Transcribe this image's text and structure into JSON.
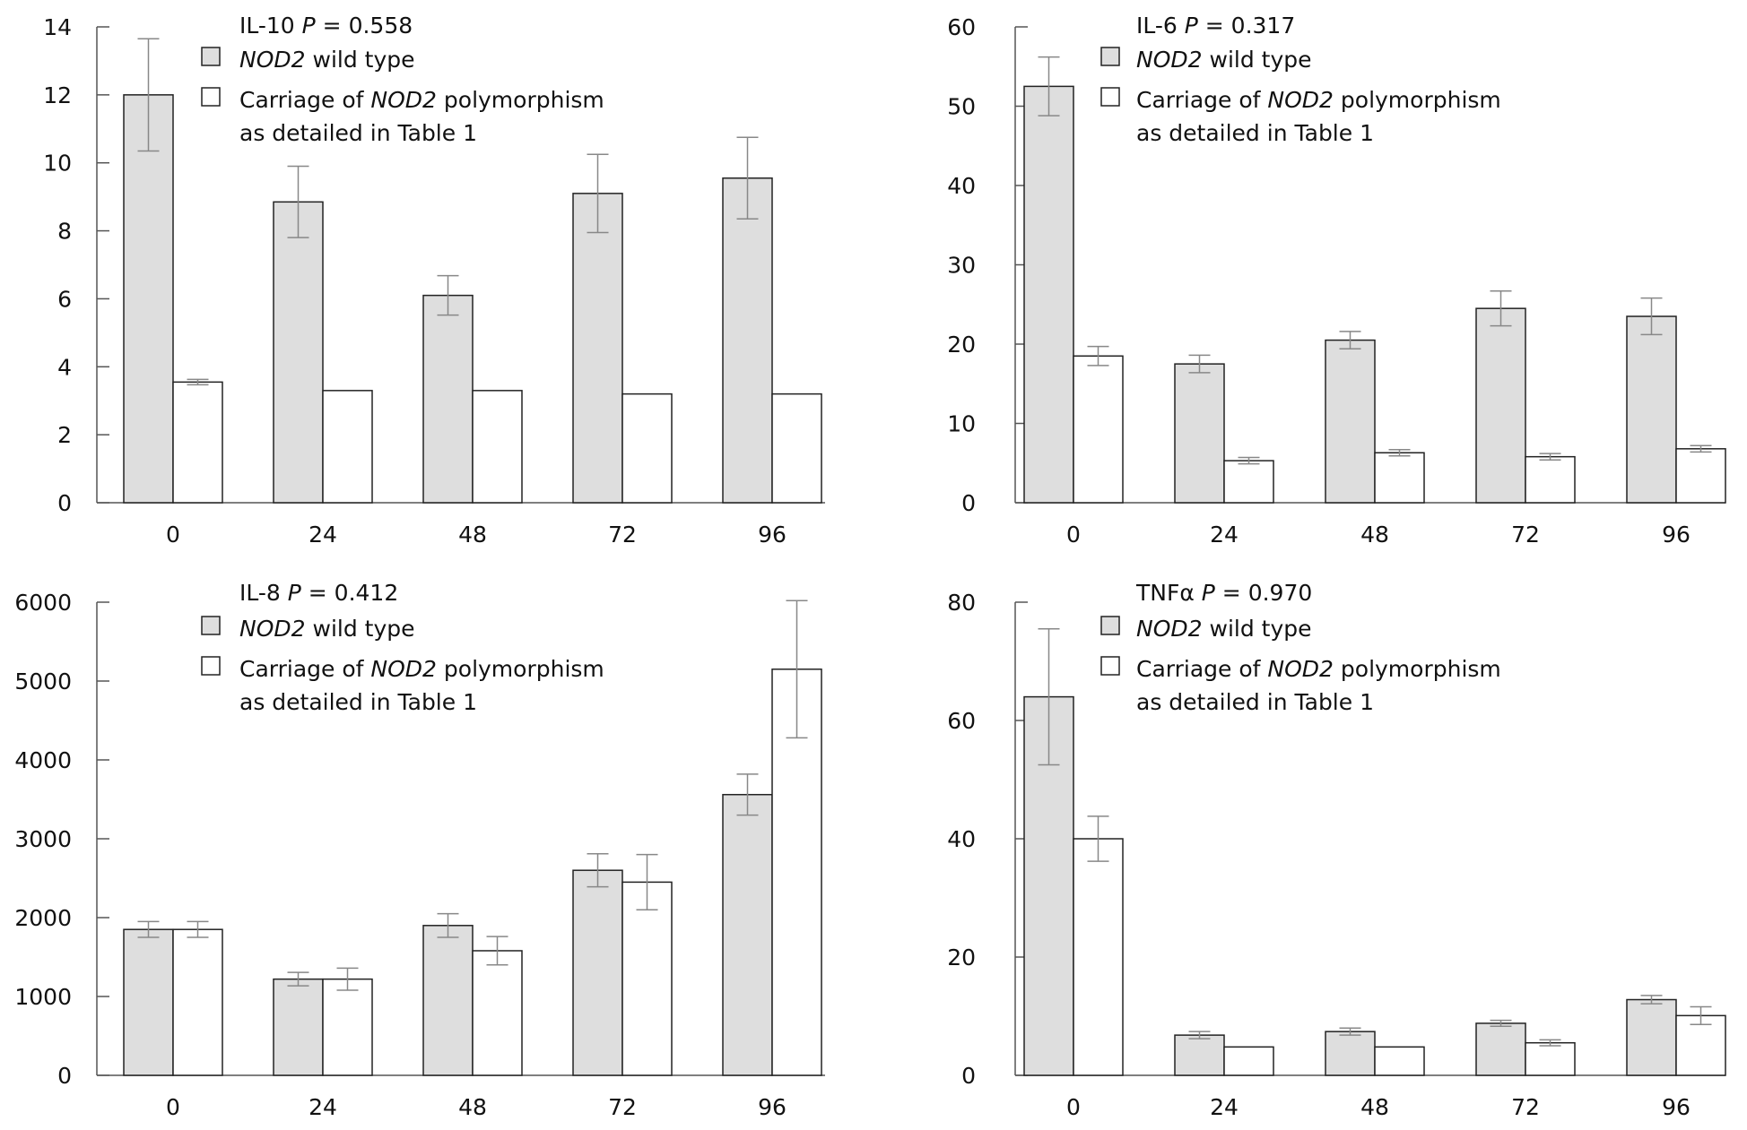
{
  "chart_data": [
    {
      "type": "bar",
      "title_prefix": "IL-10",
      "title_p": "P",
      "title_value": " = 0.558",
      "categories": [
        "0",
        "24",
        "48",
        "72",
        "96"
      ],
      "series": [
        {
          "name": "NOD2 wild type",
          "name_italic": "NOD2",
          "name_rest": " wild type",
          "color": "#dedede",
          "values": [
            12.0,
            8.85,
            6.1,
            9.1,
            9.55
          ],
          "errors": [
            1.65,
            1.05,
            0.58,
            1.15,
            1.2
          ]
        },
        {
          "name": "Carriage of NOD2 polymorphism as detailed in Table 1",
          "name_pre": "Carriage of ",
          "name_italic": "NOD2",
          "name_rest": " polymorphism",
          "name_line2": "as detailed in Table 1",
          "color": "#ffffff",
          "values": [
            3.55,
            3.3,
            3.3,
            3.2,
            3.2
          ],
          "errors": [
            0.08,
            0,
            0,
            0,
            0
          ]
        }
      ],
      "yticks": [
        0,
        2,
        4,
        6,
        8,
        10,
        12,
        14
      ],
      "ylim": [
        0,
        14
      ],
      "legend": "top"
    },
    {
      "type": "bar",
      "title_prefix": "IL-6",
      "title_p": "P",
      "title_value": " = 0.317",
      "categories": [
        "0",
        "24",
        "48",
        "72",
        "96"
      ],
      "series": [
        {
          "name": "NOD2 wild type",
          "name_italic": "NOD2",
          "name_rest": " wild type",
          "color": "#dedede",
          "values": [
            52.5,
            17.5,
            20.5,
            24.5,
            23.5
          ],
          "errors": [
            3.7,
            1.1,
            1.1,
            2.2,
            2.3
          ]
        },
        {
          "name": "Carriage of NOD2 polymorphism as detailed in Table 1",
          "name_pre": "Carriage of ",
          "name_italic": "NOD2",
          "name_rest": " polymorphism",
          "name_line2": "as detailed in Table 1",
          "color": "#ffffff",
          "values": [
            18.5,
            5.3,
            6.3,
            5.8,
            6.8
          ],
          "errors": [
            1.2,
            0.4,
            0.4,
            0.4,
            0.4
          ]
        }
      ],
      "yticks": [
        0,
        10,
        20,
        30,
        40,
        50,
        60
      ],
      "ylim": [
        0,
        60
      ],
      "legend": "top"
    },
    {
      "type": "bar",
      "title_prefix": "IL-8",
      "title_p": "P",
      "title_value": " = 0.412",
      "categories": [
        "0",
        "24",
        "48",
        "72",
        "96"
      ],
      "series": [
        {
          "name": "NOD2 wild type",
          "name_italic": "NOD2",
          "name_rest": " wild type",
          "color": "#dedede",
          "values": [
            1850,
            1220,
            1900,
            2600,
            3560
          ],
          "errors": [
            100,
            85,
            150,
            210,
            260
          ]
        },
        {
          "name": "Carriage of NOD2 polymorphism as detailed in Table 1",
          "name_pre": "Carriage of ",
          "name_italic": "NOD2",
          "name_rest": " polymorphism",
          "name_line2": "as detailed in Table 1",
          "color": "#ffffff",
          "values": [
            1850,
            1220,
            1580,
            2450,
            5150
          ],
          "errors": [
            100,
            140,
            180,
            350,
            870
          ]
        }
      ],
      "yticks": [
        0,
        1000,
        2000,
        3000,
        4000,
        5000,
        6000
      ],
      "ylim": [
        0,
        6000
      ],
      "legend": "top"
    },
    {
      "type": "bar",
      "title_prefix": "TNFα",
      "title_p": "P",
      "title_value": " = 0.970",
      "categories": [
        "0",
        "24",
        "48",
        "72",
        "96"
      ],
      "series": [
        {
          "name": "NOD2 wild type",
          "name_italic": "NOD2",
          "name_rest": " wild type",
          "color": "#dedede",
          "values": [
            64,
            6.8,
            7.4,
            8.8,
            12.8
          ],
          "errors": [
            11.5,
            0.6,
            0.6,
            0.5,
            0.7
          ]
        },
        {
          "name": "Carriage of NOD2 polymorphism as detailed in Table 1",
          "name_pre": "Carriage of ",
          "name_italic": "NOD2",
          "name_rest": " polymorphism",
          "name_line2": "as detailed in Table 1",
          "color": "#ffffff",
          "values": [
            40,
            4.8,
            4.8,
            5.5,
            10.1
          ],
          "errors": [
            3.8,
            0,
            0,
            0.5,
            1.5
          ]
        }
      ],
      "yticks": [
        0,
        20,
        40,
        60,
        80
      ],
      "ylim": [
        0,
        80
      ],
      "legend": "top"
    }
  ]
}
